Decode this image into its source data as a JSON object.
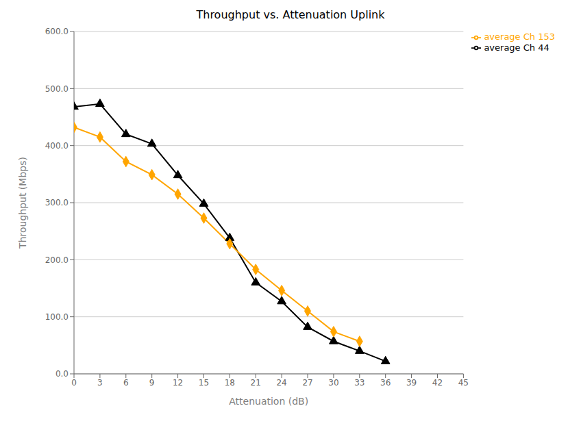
{
  "chart_data": {
    "type": "line",
    "title": "Throughput vs. Attenuation Uplink",
    "xlabel": "Attenuation (dB)",
    "ylabel": "Throughput (Mbps)",
    "series": [
      {
        "name": "average Ch 44",
        "color": "#000000",
        "marker": "triangle",
        "x": [
          0,
          3,
          6,
          9,
          12,
          15,
          18,
          21,
          24,
          27,
          30,
          33,
          36
        ],
        "values": [
          468,
          473,
          420,
          403,
          348,
          298,
          238,
          160,
          127,
          82,
          57,
          40,
          22
        ]
      },
      {
        "name": "average Ch 153",
        "color": "#FFA500",
        "marker": "diamond",
        "x": [
          0,
          3,
          6,
          9,
          12,
          15,
          18,
          21,
          24,
          27,
          30,
          33
        ],
        "values": [
          432,
          415,
          372,
          349,
          315,
          273,
          228,
          183,
          146,
          110,
          74,
          57
        ]
      }
    ],
    "xlim": [
      0,
      45
    ],
    "xticks": [
      0,
      3,
      6,
      9,
      12,
      15,
      18,
      21,
      24,
      27,
      30,
      33,
      36,
      39,
      42,
      45
    ],
    "ylim": [
      0,
      600
    ],
    "yticks": [
      {
        "value": 0,
        "label": "0.0"
      },
      {
        "value": 100,
        "label": "100.0"
      },
      {
        "value": 200,
        "label": "200.0"
      },
      {
        "value": 300,
        "label": "300.0"
      },
      {
        "value": 400,
        "label": "400.0"
      },
      {
        "value": 500,
        "label": "500.0"
      },
      {
        "value": 600,
        "label": "600.0"
      }
    ],
    "grid": true,
    "legend": "upper right"
  }
}
